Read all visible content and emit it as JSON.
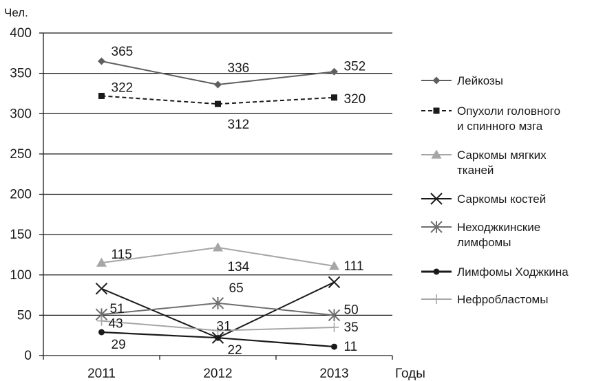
{
  "chart_data": {
    "type": "line",
    "y_unit_label": "Чел.",
    "xlabel": "Годы",
    "ylim": [
      0,
      400
    ],
    "yticks": [
      "0",
      "50",
      "100",
      "150",
      "200",
      "250",
      "300",
      "350",
      "400"
    ],
    "categories": [
      "2011",
      "2012",
      "2013"
    ],
    "grid": true,
    "legend_position": "right",
    "series": [
      {
        "name": "Лейкозы",
        "values": [
          365,
          336,
          352
        ],
        "color": "#5f5f5f",
        "marker": "diamond",
        "dash": false,
        "labels": [
          "365",
          "336",
          "352"
        ]
      },
      {
        "name": "Опухоли головного и спинного мзга",
        "values": [
          322,
          312,
          320
        ],
        "color": "#1a1a1a",
        "marker": "square",
        "dash": true,
        "labels": [
          "322",
          "312",
          "320"
        ]
      },
      {
        "name": "Саркомы мягких тканей",
        "values": [
          115,
          134,
          111
        ],
        "color": "#a6a6a6",
        "marker": "triangle",
        "dash": false,
        "labels": [
          "115",
          "134",
          "111"
        ]
      },
      {
        "name": "Саркомы костей",
        "values": [
          83,
          22,
          91
        ],
        "color": "#1a1a1a",
        "marker": "x",
        "dash": false,
        "labels": [
          "",
          "22",
          ""
        ]
      },
      {
        "name": "Неходжкинские лимфомы",
        "values": [
          51,
          65,
          50
        ],
        "color": "#6f6f6f",
        "marker": "star",
        "dash": false,
        "labels": [
          "51",
          "65",
          "50"
        ]
      },
      {
        "name": "Лимфомы Ходжкина",
        "values": [
          29,
          22,
          11
        ],
        "color": "#1a1a1a",
        "marker": "circle",
        "dash": false,
        "labels": [
          "29",
          "",
          "11"
        ]
      },
      {
        "name": "Нефробластомы",
        "values": [
          43,
          31,
          35
        ],
        "color": "#a6a6a6",
        "marker": "plus",
        "dash": false,
        "labels": [
          "43",
          "31",
          "35"
        ]
      }
    ]
  },
  "legend": {
    "items": [
      {
        "lines": [
          "Лейкозы"
        ]
      },
      {
        "lines": [
          "Опухоли головного",
          "и спинного мзга"
        ]
      },
      {
        "lines": [
          "Саркомы мягких",
          "тканей"
        ]
      },
      {
        "lines": [
          "Саркомы костей"
        ]
      },
      {
        "lines": [
          "Неходжкинские",
          "лимфомы"
        ]
      },
      {
        "lines": [
          "Лимфомы Ходжкина"
        ]
      },
      {
        "lines": [
          "Нефробластомы"
        ]
      }
    ]
  }
}
